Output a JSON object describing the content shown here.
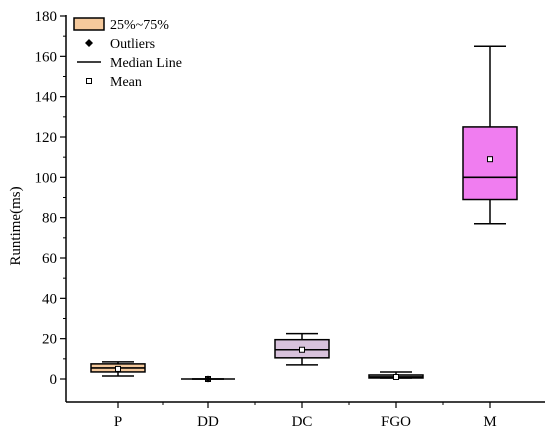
{
  "chart_data": {
    "type": "box",
    "categories": [
      "P",
      "DD",
      "DC",
      "FGO",
      "M"
    ],
    "ylabel": "Runtime(ms)",
    "xlabel": "",
    "ylim": [
      0,
      180
    ],
    "yticks": [
      "0",
      "20",
      "40",
      "60",
      "80",
      "100",
      "120",
      "140",
      "160",
      "180"
    ],
    "boxes": [
      {
        "category": "P",
        "min": 1.5,
        "q1": 3.5,
        "median": 5.5,
        "q3": 7.5,
        "max": 8.5,
        "mean": 5,
        "color": "#f5c99c"
      },
      {
        "category": "DD",
        "min": 0,
        "q1": 0,
        "median": 0,
        "q3": 0,
        "max": 0,
        "mean": 0,
        "color": "#f5c99c",
        "outliers": [
          0
        ]
      },
      {
        "category": "DC",
        "min": 7,
        "q1": 10.5,
        "median": 14.5,
        "q3": 19.5,
        "max": 22.5,
        "mean": 14.5,
        "color": "#d8c2dc"
      },
      {
        "category": "FGO",
        "min": 0.5,
        "q1": 0.5,
        "median": 1,
        "q3": 2,
        "max": 3.5,
        "mean": 1,
        "color": "#b7b7b7"
      },
      {
        "category": "M",
        "min": 77,
        "q1": 89,
        "median": 100,
        "q3": 125,
        "max": 165,
        "mean": 109,
        "color": "#f07df0"
      }
    ],
    "legend": {
      "position": "top-left",
      "entries": [
        {
          "label": "25%~75%",
          "symbol": "box",
          "color": "#f5c99c"
        },
        {
          "label": "Outliers",
          "symbol": "diamond"
        },
        {
          "label": "Median Line",
          "symbol": "line"
        },
        {
          "label": "Mean",
          "symbol": "square-open"
        }
      ]
    }
  }
}
